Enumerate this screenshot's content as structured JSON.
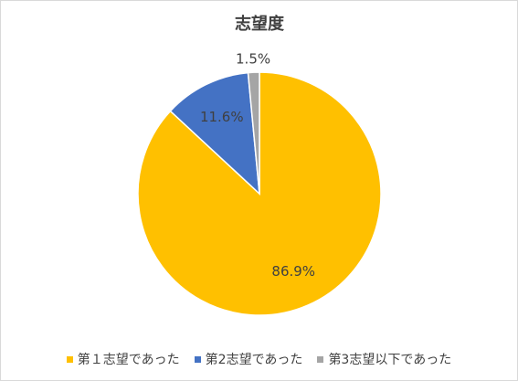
{
  "chart_data": {
    "type": "pie",
    "title": "志望度",
    "categories": [
      "第１志望であった",
      "第2志望であった",
      "第3志望以下であった"
    ],
    "values": [
      86.9,
      11.6,
      1.5
    ],
    "value_labels": [
      "86.9%",
      "11.6%",
      "1.5%"
    ],
    "colors": [
      "#FFC000",
      "#4472C4",
      "#A5A5A5"
    ],
    "legend": "bottom"
  }
}
